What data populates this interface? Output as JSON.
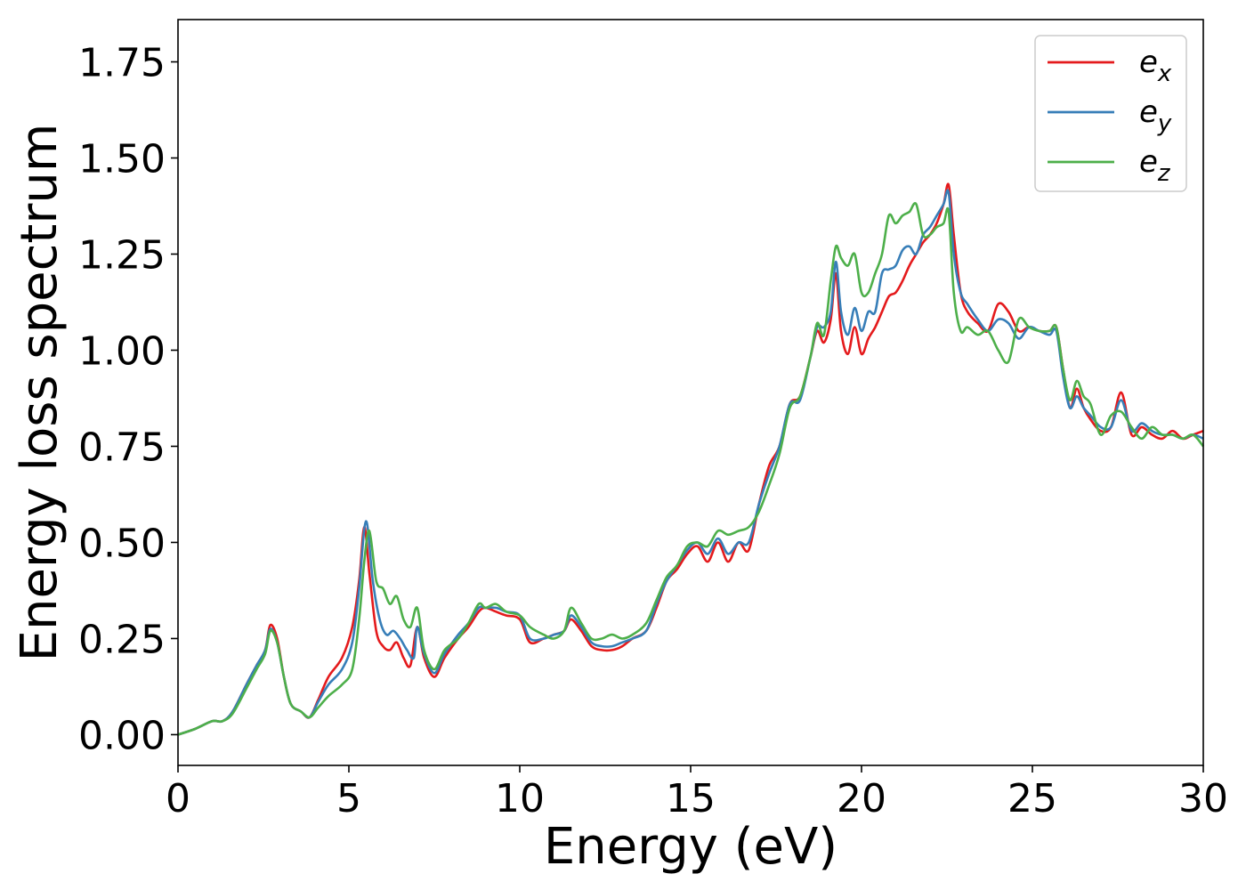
{
  "chart_data": {
    "type": "line",
    "title": "",
    "xlabel": "Energy (eV)",
    "ylabel": "Energy loss spectrum",
    "xlim": [
      0,
      30
    ],
    "ylim": [
      -0.08,
      1.86
    ],
    "xticks": [
      0,
      5,
      10,
      15,
      20,
      25,
      30
    ],
    "xtick_labels": [
      "0",
      "5",
      "10",
      "15",
      "20",
      "25",
      "30"
    ],
    "yticks": [
      0.0,
      0.25,
      0.5,
      0.75,
      1.0,
      1.25,
      1.5,
      1.75
    ],
    "ytick_labels": [
      "0.00",
      "0.25",
      "0.50",
      "0.75",
      "1.00",
      "1.25",
      "1.50",
      "1.75"
    ],
    "grid": false,
    "legend_position": "top-right",
    "series": [
      {
        "name": "e_x",
        "legend_base": "e",
        "legend_sub": "x",
        "color": "#e41a1c",
        "x": [
          0,
          0.5,
          1.0,
          1.3,
          1.6,
          2.0,
          2.3,
          2.55,
          2.7,
          2.9,
          3.1,
          3.3,
          3.6,
          3.85,
          4.1,
          4.4,
          4.8,
          5.1,
          5.3,
          5.45,
          5.6,
          5.8,
          6.0,
          6.2,
          6.4,
          6.6,
          6.8,
          7.0,
          7.2,
          7.5,
          7.8,
          8.2,
          8.5,
          8.8,
          9.0,
          9.3,
          9.6,
          10.0,
          10.3,
          10.7,
          11.0,
          11.3,
          11.5,
          11.8,
          12.1,
          12.4,
          12.7,
          13.0,
          13.3,
          13.7,
          14.0,
          14.3,
          14.6,
          14.9,
          15.2,
          15.5,
          15.8,
          16.1,
          16.4,
          16.7,
          17.0,
          17.3,
          17.6,
          17.9,
          18.2,
          18.5,
          18.7,
          18.9,
          19.1,
          19.25,
          19.4,
          19.6,
          19.8,
          20.0,
          20.2,
          20.4,
          20.6,
          20.8,
          21.0,
          21.2,
          21.4,
          21.6,
          21.8,
          22.0,
          22.2,
          22.4,
          22.55,
          22.7,
          22.9,
          23.1,
          23.4,
          23.7,
          24.0,
          24.3,
          24.6,
          24.9,
          25.2,
          25.5,
          25.7,
          25.9,
          26.1,
          26.3,
          26.5,
          26.7,
          27.0,
          27.3,
          27.6,
          27.9,
          28.2,
          28.5,
          28.8,
          29.1,
          29.4,
          29.7,
          30.0
        ],
        "y": [
          0.0,
          0.015,
          0.035,
          0.035,
          0.06,
          0.13,
          0.18,
          0.22,
          0.285,
          0.25,
          0.15,
          0.08,
          0.06,
          0.045,
          0.09,
          0.15,
          0.2,
          0.28,
          0.4,
          0.54,
          0.42,
          0.27,
          0.23,
          0.22,
          0.24,
          0.2,
          0.18,
          0.28,
          0.2,
          0.15,
          0.2,
          0.25,
          0.28,
          0.32,
          0.33,
          0.32,
          0.31,
          0.3,
          0.24,
          0.25,
          0.26,
          0.27,
          0.3,
          0.27,
          0.23,
          0.22,
          0.22,
          0.23,
          0.25,
          0.27,
          0.33,
          0.4,
          0.43,
          0.47,
          0.49,
          0.45,
          0.5,
          0.45,
          0.5,
          0.48,
          0.6,
          0.7,
          0.75,
          0.86,
          0.88,
          0.98,
          1.05,
          1.02,
          1.08,
          1.2,
          1.05,
          0.99,
          1.06,
          0.99,
          1.03,
          1.06,
          1.1,
          1.14,
          1.15,
          1.18,
          1.22,
          1.25,
          1.28,
          1.3,
          1.33,
          1.38,
          1.43,
          1.3,
          1.15,
          1.1,
          1.07,
          1.05,
          1.12,
          1.1,
          1.05,
          1.06,
          1.05,
          1.05,
          1.06,
          0.95,
          0.85,
          0.9,
          0.85,
          0.82,
          0.79,
          0.8,
          0.89,
          0.78,
          0.8,
          0.78,
          0.77,
          0.79,
          0.77,
          0.78,
          0.79
        ]
      },
      {
        "name": "e_y",
        "legend_base": "e",
        "legend_sub": "y",
        "color": "#377eb8",
        "x": [
          0,
          0.5,
          1.0,
          1.3,
          1.6,
          2.0,
          2.3,
          2.55,
          2.7,
          2.9,
          3.1,
          3.3,
          3.6,
          3.85,
          4.1,
          4.4,
          4.8,
          5.1,
          5.3,
          5.5,
          5.7,
          5.9,
          6.1,
          6.3,
          6.5,
          6.7,
          6.9,
          7.0,
          7.2,
          7.5,
          7.8,
          8.2,
          8.5,
          8.8,
          9.0,
          9.3,
          9.6,
          10.0,
          10.3,
          10.7,
          11.0,
          11.3,
          11.5,
          11.8,
          12.1,
          12.4,
          12.7,
          13.0,
          13.3,
          13.7,
          14.0,
          14.3,
          14.6,
          14.9,
          15.2,
          15.5,
          15.8,
          16.1,
          16.4,
          16.7,
          17.0,
          17.3,
          17.6,
          17.9,
          18.2,
          18.5,
          18.7,
          18.9,
          19.1,
          19.25,
          19.4,
          19.6,
          19.8,
          20.0,
          20.2,
          20.4,
          20.6,
          20.8,
          21.0,
          21.2,
          21.4,
          21.6,
          21.8,
          22.0,
          22.2,
          22.4,
          22.55,
          22.7,
          22.9,
          23.1,
          23.4,
          23.7,
          24.0,
          24.3,
          24.6,
          24.9,
          25.2,
          25.5,
          25.7,
          25.9,
          26.1,
          26.3,
          26.5,
          26.7,
          27.0,
          27.3,
          27.6,
          27.9,
          28.2,
          28.5,
          28.8,
          29.1,
          29.4,
          29.7,
          30.0
        ],
        "y": [
          0.0,
          0.015,
          0.035,
          0.035,
          0.06,
          0.13,
          0.18,
          0.22,
          0.275,
          0.24,
          0.15,
          0.08,
          0.06,
          0.045,
          0.085,
          0.13,
          0.17,
          0.24,
          0.38,
          0.555,
          0.4,
          0.3,
          0.26,
          0.27,
          0.25,
          0.22,
          0.2,
          0.28,
          0.21,
          0.16,
          0.21,
          0.26,
          0.29,
          0.33,
          0.33,
          0.33,
          0.32,
          0.31,
          0.25,
          0.25,
          0.26,
          0.27,
          0.31,
          0.28,
          0.24,
          0.23,
          0.23,
          0.24,
          0.25,
          0.27,
          0.34,
          0.4,
          0.44,
          0.48,
          0.5,
          0.47,
          0.51,
          0.47,
          0.5,
          0.5,
          0.6,
          0.68,
          0.75,
          0.86,
          0.87,
          0.98,
          1.06,
          1.06,
          1.1,
          1.23,
          1.1,
          1.04,
          1.11,
          1.05,
          1.1,
          1.1,
          1.2,
          1.21,
          1.22,
          1.26,
          1.27,
          1.25,
          1.3,
          1.32,
          1.35,
          1.38,
          1.41,
          1.25,
          1.15,
          1.12,
          1.08,
          1.05,
          1.08,
          1.07,
          1.03,
          1.06,
          1.05,
          1.04,
          1.05,
          0.93,
          0.85,
          0.88,
          0.85,
          0.83,
          0.8,
          0.8,
          0.87,
          0.79,
          0.81,
          0.79,
          0.78,
          0.78,
          0.77,
          0.78,
          0.77
        ]
      },
      {
        "name": "e_z",
        "legend_base": "e",
        "legend_sub": "z",
        "color": "#4daf4a",
        "x": [
          0,
          0.5,
          1.0,
          1.3,
          1.6,
          2.0,
          2.3,
          2.55,
          2.7,
          2.9,
          3.1,
          3.3,
          3.6,
          3.85,
          4.1,
          4.4,
          4.8,
          5.1,
          5.3,
          5.45,
          5.6,
          5.8,
          6.0,
          6.2,
          6.4,
          6.6,
          6.8,
          7.0,
          7.2,
          7.5,
          7.8,
          8.2,
          8.5,
          8.8,
          9.0,
          9.3,
          9.6,
          10.0,
          10.3,
          10.7,
          11.0,
          11.3,
          11.5,
          11.8,
          12.1,
          12.4,
          12.7,
          13.0,
          13.3,
          13.7,
          14.0,
          14.3,
          14.6,
          14.9,
          15.2,
          15.5,
          15.8,
          16.1,
          16.4,
          16.7,
          17.0,
          17.3,
          17.6,
          17.9,
          18.2,
          18.5,
          18.7,
          18.9,
          19.1,
          19.25,
          19.4,
          19.6,
          19.8,
          20.0,
          20.2,
          20.4,
          20.6,
          20.8,
          21.0,
          21.2,
          21.4,
          21.6,
          21.8,
          22.0,
          22.2,
          22.4,
          22.55,
          22.7,
          22.9,
          23.1,
          23.4,
          23.7,
          24.0,
          24.3,
          24.6,
          24.9,
          25.2,
          25.5,
          25.7,
          25.9,
          26.1,
          26.3,
          26.5,
          26.7,
          27.0,
          27.3,
          27.6,
          27.9,
          28.2,
          28.5,
          28.8,
          29.1,
          29.4,
          29.7,
          30.0
        ],
        "y": [
          0.0,
          0.015,
          0.035,
          0.035,
          0.055,
          0.12,
          0.17,
          0.21,
          0.27,
          0.24,
          0.15,
          0.08,
          0.06,
          0.045,
          0.07,
          0.1,
          0.13,
          0.17,
          0.3,
          0.45,
          0.53,
          0.4,
          0.38,
          0.34,
          0.36,
          0.3,
          0.28,
          0.33,
          0.22,
          0.17,
          0.22,
          0.25,
          0.29,
          0.34,
          0.33,
          0.34,
          0.32,
          0.31,
          0.28,
          0.26,
          0.25,
          0.27,
          0.33,
          0.29,
          0.25,
          0.25,
          0.26,
          0.25,
          0.26,
          0.29,
          0.35,
          0.41,
          0.44,
          0.49,
          0.5,
          0.49,
          0.53,
          0.52,
          0.53,
          0.54,
          0.58,
          0.65,
          0.73,
          0.85,
          0.88,
          0.98,
          1.07,
          1.04,
          1.18,
          1.27,
          1.24,
          1.22,
          1.25,
          1.15,
          1.15,
          1.2,
          1.25,
          1.35,
          1.33,
          1.35,
          1.36,
          1.38,
          1.3,
          1.3,
          1.32,
          1.33,
          1.36,
          1.15,
          1.05,
          1.06,
          1.04,
          1.05,
          1.0,
          0.97,
          1.08,
          1.06,
          1.05,
          1.05,
          1.06,
          0.95,
          0.87,
          0.92,
          0.88,
          0.86,
          0.78,
          0.83,
          0.84,
          0.8,
          0.77,
          0.8,
          0.78,
          0.78,
          0.77,
          0.78,
          0.75
        ]
      }
    ]
  }
}
